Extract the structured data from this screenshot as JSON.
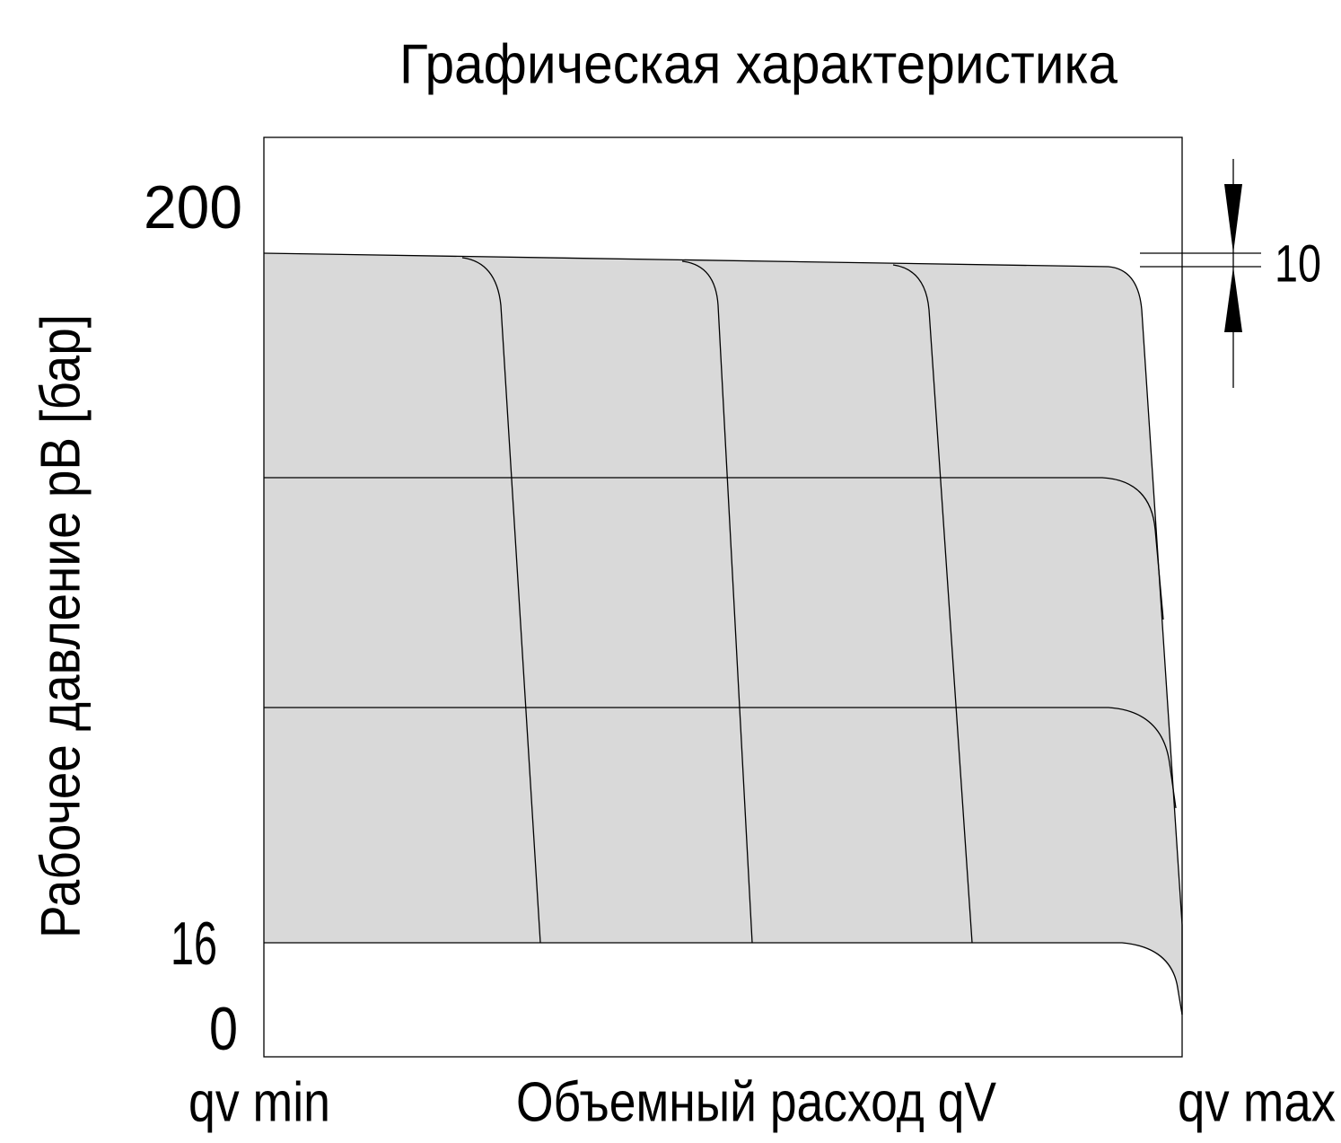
{
  "title": "Графическая характеристика",
  "y_axis": {
    "label": "Рабочее давление pB [бар]",
    "ticks": [
      "200",
      "16",
      "0"
    ]
  },
  "x_axis": {
    "label": "Объемный расход qV",
    "min_label": "qv min",
    "max_label": "qv max"
  },
  "dimension": {
    "label": "10"
  }
}
